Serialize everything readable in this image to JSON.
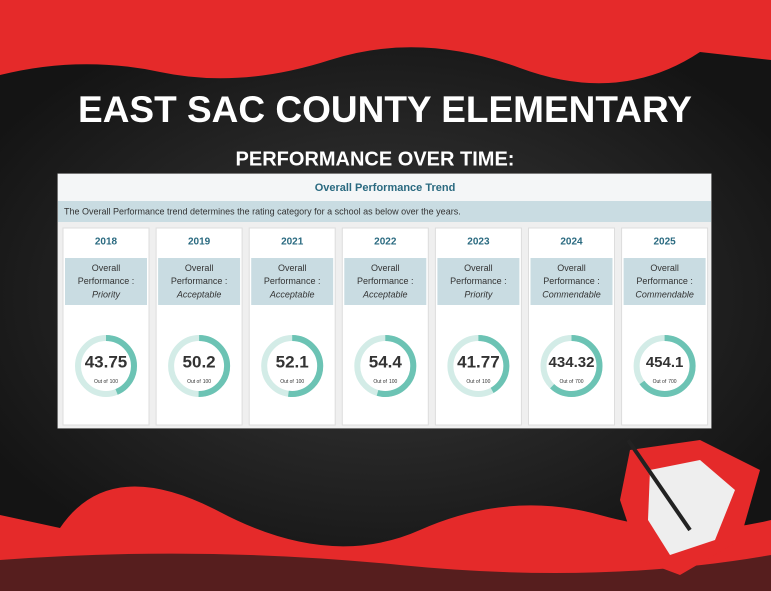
{
  "header": {
    "title": "EAST SAC COUNTY ELEMENTARY",
    "subtitle": "PERFORMANCE OVER TIME:"
  },
  "panel": {
    "title": "Overall Performance Trend",
    "description": "The Overall Performance trend determines the rating category for a school as below over the years.",
    "rating_label": "Overall Performance :",
    "out_of_text": "Out of",
    "cards": [
      {
        "year": "2018",
        "rating": "Priority",
        "score": 43.75,
        "max": 100
      },
      {
        "year": "2019",
        "rating": "Acceptable",
        "score": 50.2,
        "max": 100
      },
      {
        "year": "2021",
        "rating": "Acceptable",
        "score": 52.1,
        "max": 100
      },
      {
        "year": "2022",
        "rating": "Acceptable",
        "score": 54.4,
        "max": 100
      },
      {
        "year": "2023",
        "rating": "Priority",
        "score": 41.77,
        "max": 100
      },
      {
        "year": "2024",
        "rating": "Commendable",
        "score": 434.32,
        "max": 700
      },
      {
        "year": "2025",
        "rating": "Commendable",
        "score": 454.1,
        "max": 700
      }
    ]
  }
}
